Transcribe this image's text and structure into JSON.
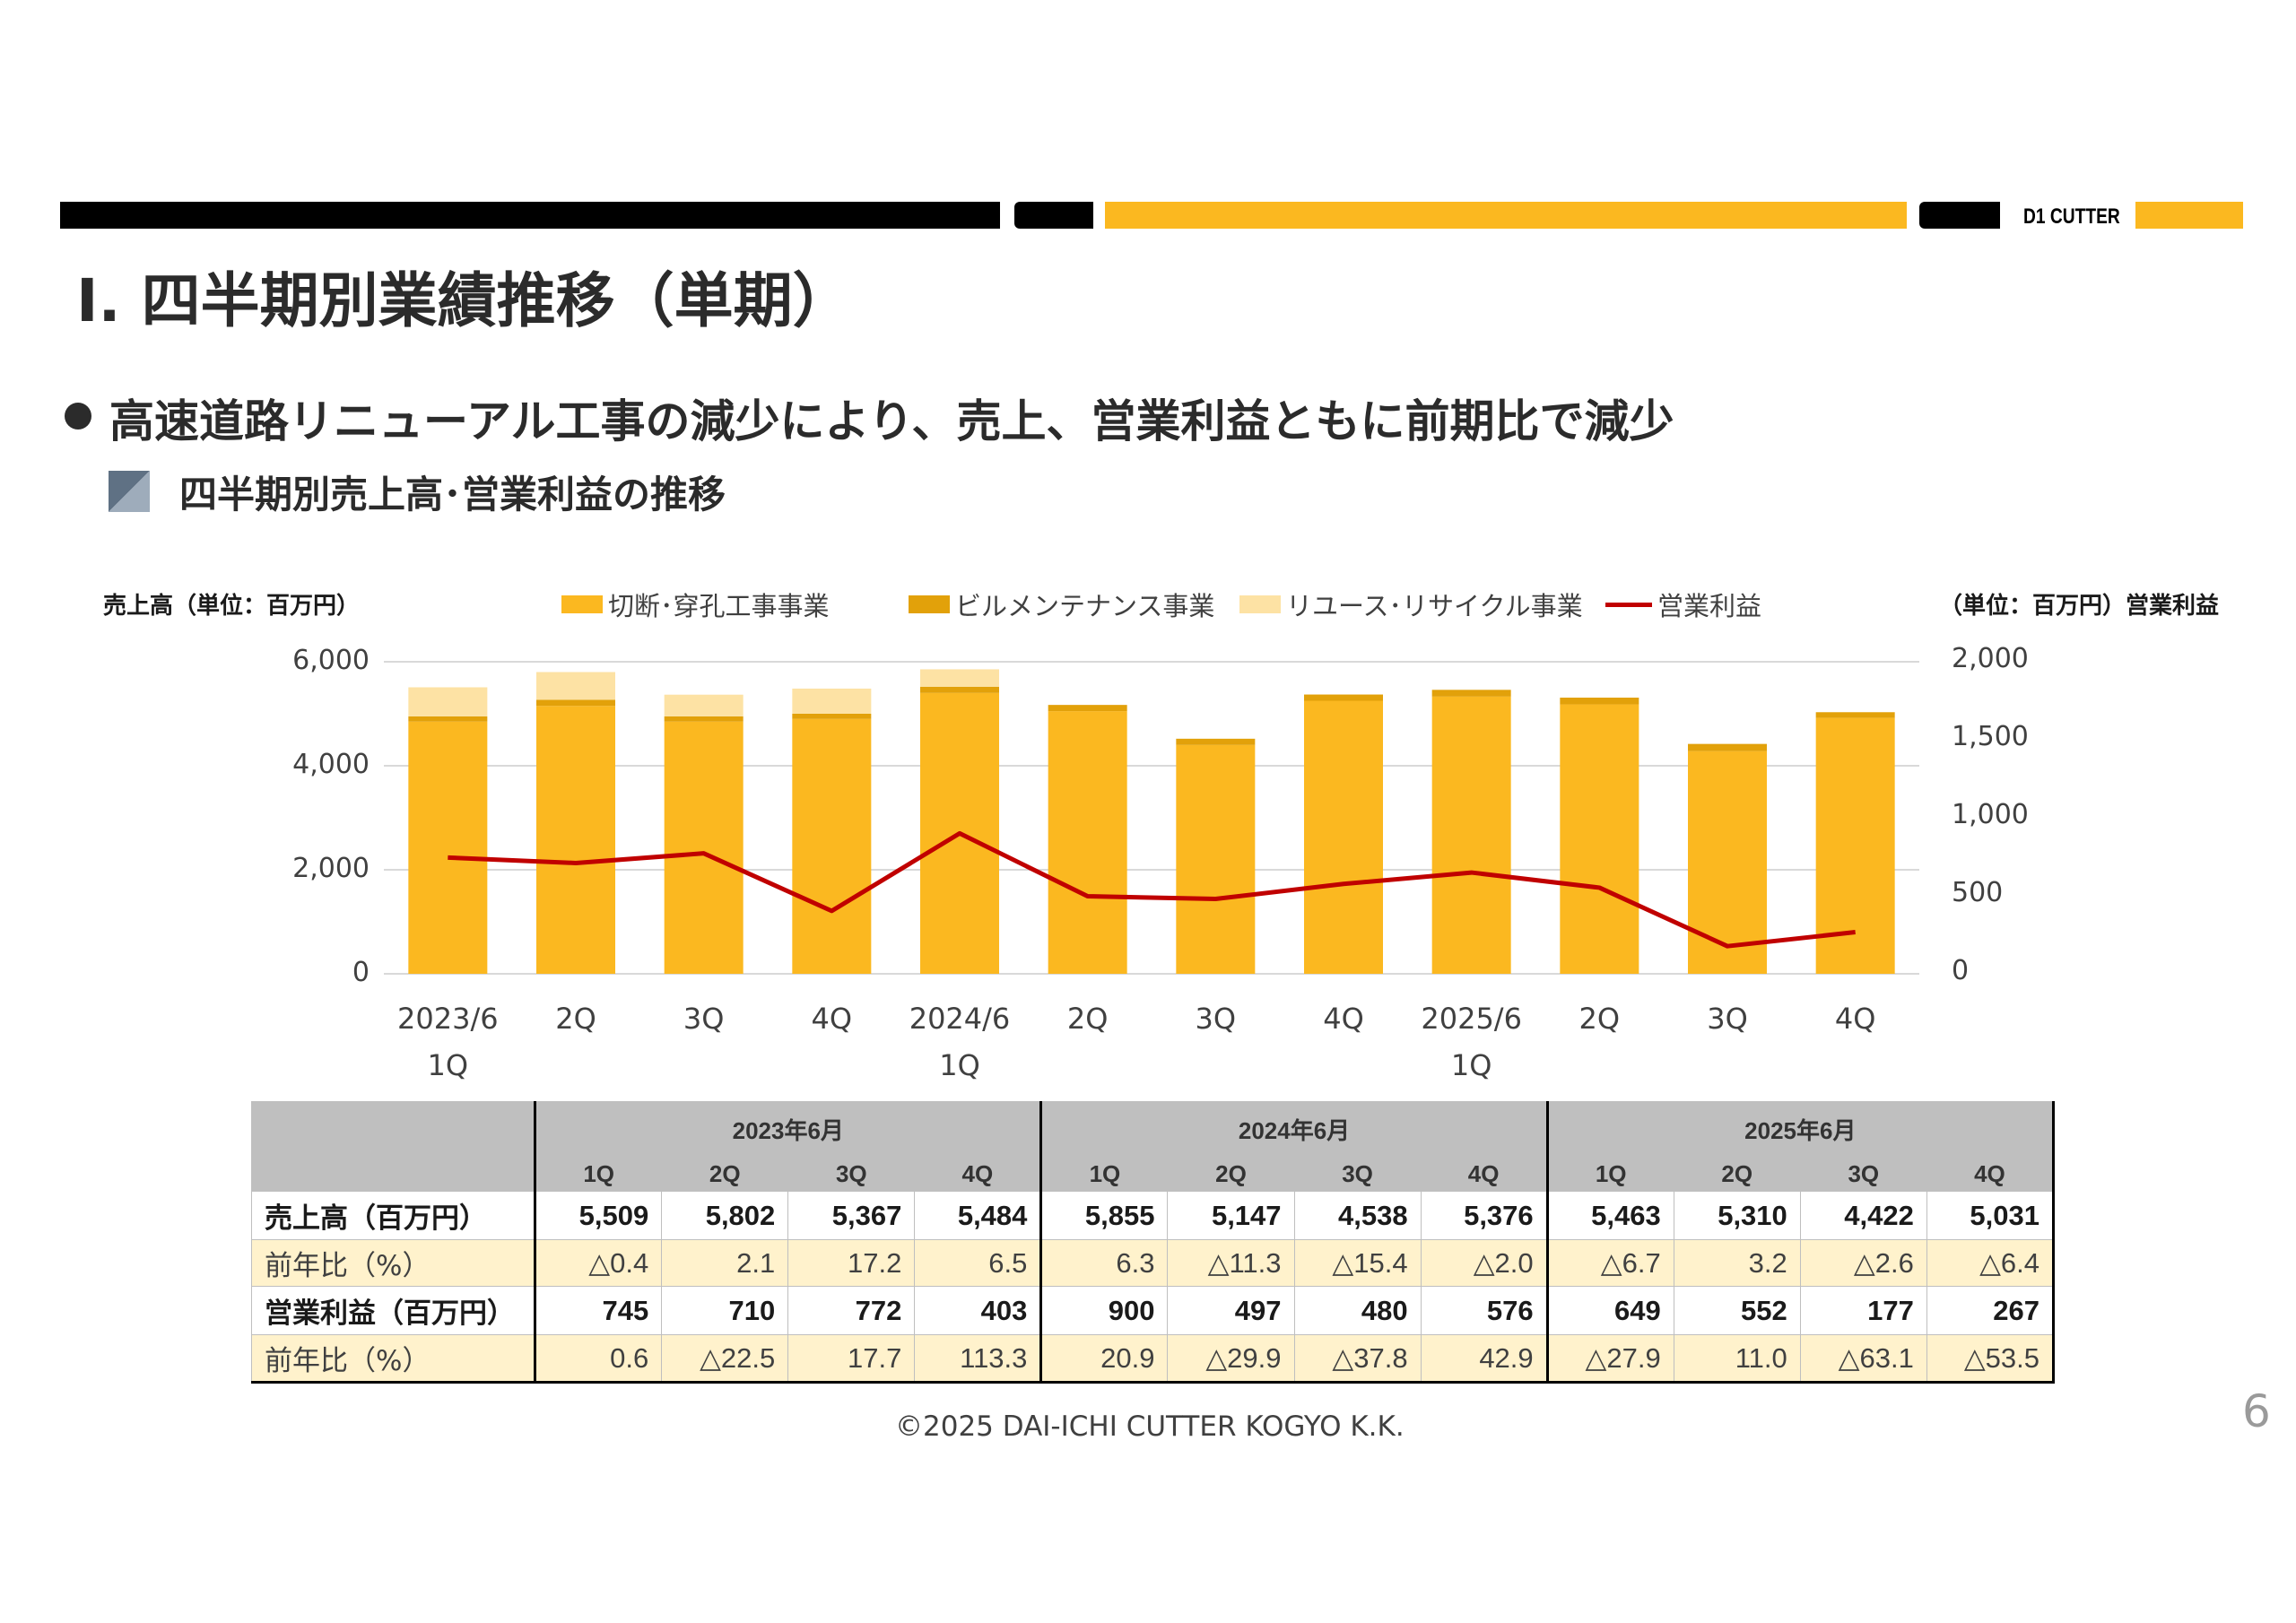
{
  "header": {
    "logo": "D1 CUTTER",
    "title": "Ⅰ. 四半期別業績推移（単期）",
    "bullet": "高速道路リニューアル工事の減少により、売上、営業利益ともに前期比で減少",
    "subheading": "四半期別売上高･営業利益の推移"
  },
  "colors": {
    "brand_yellow": "#FBB820",
    "cutting": "#FBB820",
    "maintenance": "#E2A10A",
    "reuse": "#FDE2A4",
    "operating_profit": "#C00000",
    "yoy_row": "#FFF2CC"
  },
  "chart_data": {
    "type": "bar",
    "stacked": true,
    "left_axis_title": "売上高（単位：百万円）",
    "right_axis_title": "（単位：百万円）営業利益",
    "left_ylim": [
      0,
      6000
    ],
    "left_ticks": [
      "6,000",
      "4,000",
      "2,000",
      "0"
    ],
    "right_ylim": [
      0,
      2000
    ],
    "right_ticks": [
      "2,000",
      "1,500",
      "1,000",
      "500",
      "0"
    ],
    "categories": [
      {
        "line1": "2023/6",
        "line2": "1Q"
      },
      {
        "line1": "2Q",
        "line2": ""
      },
      {
        "line1": "3Q",
        "line2": ""
      },
      {
        "line1": "4Q",
        "line2": ""
      },
      {
        "line1": "2024/6",
        "line2": "1Q"
      },
      {
        "line1": "2Q",
        "line2": ""
      },
      {
        "line1": "3Q",
        "line2": ""
      },
      {
        "line1": "4Q",
        "line2": ""
      },
      {
        "line1": "2025/6",
        "line2": "1Q"
      },
      {
        "line1": "2Q",
        "line2": ""
      },
      {
        "line1": "3Q",
        "line2": ""
      },
      {
        "line1": "4Q",
        "line2": ""
      }
    ],
    "series": [
      {
        "name": "切断･穿孔工事事業",
        "axis": "left",
        "type": "bar",
        "values": [
          4850,
          5150,
          4850,
          4900,
          5400,
          5050,
          4400,
          5250,
          5330,
          5180,
          4280,
          4920
        ]
      },
      {
        "name": "ビルメンテナンス事業",
        "axis": "left",
        "type": "bar",
        "values": [
          100,
          120,
          100,
          100,
          120,
          120,
          120,
          120,
          130,
          130,
          140,
          110
        ]
      },
      {
        "name": "リユース･リサイクル事業",
        "axis": "left",
        "type": "bar",
        "values": [
          559,
          532,
          417,
          484,
          335,
          0,
          0,
          0,
          0,
          0,
          0,
          0
        ]
      },
      {
        "name": "営業利益",
        "axis": "right",
        "type": "line",
        "values": [
          745,
          710,
          772,
          403,
          900,
          497,
          480,
          576,
          649,
          552,
          177,
          267
        ]
      }
    ]
  },
  "table": {
    "period_headers": [
      "2023年6月",
      "2024年6月",
      "2025年6月"
    ],
    "quarter_headers": [
      "1Q",
      "2Q",
      "3Q",
      "4Q",
      "1Q",
      "2Q",
      "3Q",
      "4Q",
      "1Q",
      "2Q",
      "3Q",
      "4Q"
    ],
    "rows": [
      {
        "label": "売上高（百万円）",
        "kind": "sales",
        "values": [
          "5,509",
          "5,802",
          "5,367",
          "5,484",
          "5,855",
          "5,147",
          "4,538",
          "5,376",
          "5,463",
          "5,310",
          "4,422",
          "5,031"
        ]
      },
      {
        "label": "前年比（%）",
        "kind": "yoy",
        "values": [
          "△0.4",
          "2.1",
          "17.2",
          "6.5",
          "6.3",
          "△11.3",
          "△15.4",
          "△2.0",
          "△6.7",
          "3.2",
          "△2.6",
          "△6.4"
        ]
      },
      {
        "label": "営業利益（百万円）",
        "kind": "op",
        "values": [
          "745",
          "710",
          "772",
          "403",
          "900",
          "497",
          "480",
          "576",
          "649",
          "552",
          "177",
          "267"
        ]
      },
      {
        "label": "前年比（%）",
        "kind": "yoy",
        "values": [
          "0.6",
          "△22.5",
          "17.7",
          "113.3",
          "20.9",
          "△29.9",
          "△37.8",
          "42.9",
          "△27.9",
          "11.0",
          "△63.1",
          "△53.5"
        ]
      }
    ]
  },
  "footer": {
    "copyright": "©2025 DAI-ICHI CUTTER KOGYO K.K.",
    "page_number": "6"
  }
}
